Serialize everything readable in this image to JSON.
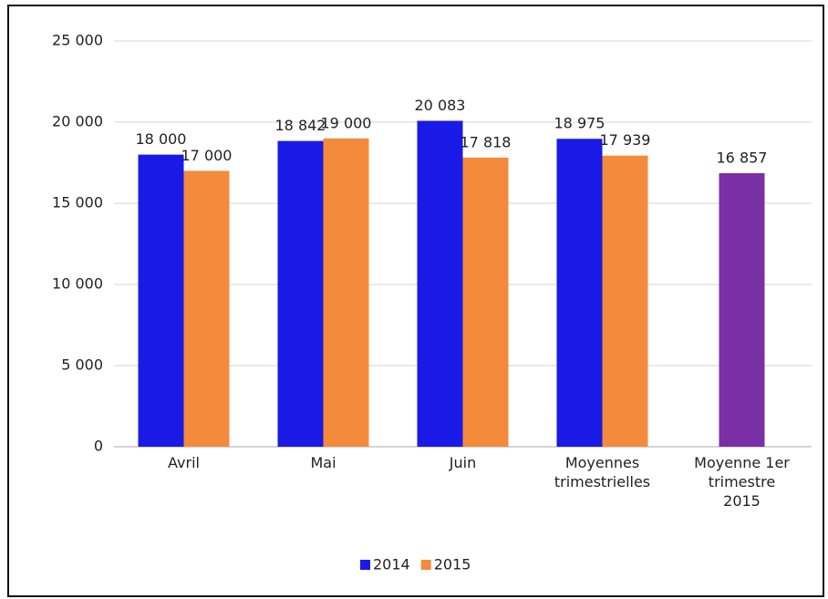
{
  "chart_data": {
    "type": "bar",
    "categories": [
      "Avril",
      "Mai",
      "Juin",
      "Moyennes trimestrielles",
      "Moyenne 1er trimestre 2015"
    ],
    "series": [
      {
        "name": "2014",
        "color": "#1a1ae6",
        "values": [
          18000,
          18842,
          20083,
          18975,
          null
        ],
        "value_labels": [
          "18 000",
          "18 842",
          "20 083",
          "18 975",
          null
        ]
      },
      {
        "name": "2015",
        "color": "#f48a3c",
        "colors": [
          "#f48a3c",
          "#f48a3c",
          "#f48a3c",
          "#f48a3c",
          "#7a2fa6"
        ],
        "values": [
          17000,
          19000,
          17818,
          17939,
          16857
        ],
        "value_labels": [
          "17 000",
          "19 000",
          "17 818",
          "17 939",
          "16 857"
        ]
      }
    ],
    "ylim": [
      0,
      25000
    ],
    "yticks": [
      {
        "value": 0,
        "label": "0"
      },
      {
        "value": 5000,
        "label": "5 000"
      },
      {
        "value": 10000,
        "label": "10 000"
      },
      {
        "value": 15000,
        "label": "15 000"
      },
      {
        "value": 20000,
        "label": "20 000"
      },
      {
        "value": 25000,
        "label": "25 000"
      }
    ],
    "grid": true,
    "legend": "bottom"
  }
}
